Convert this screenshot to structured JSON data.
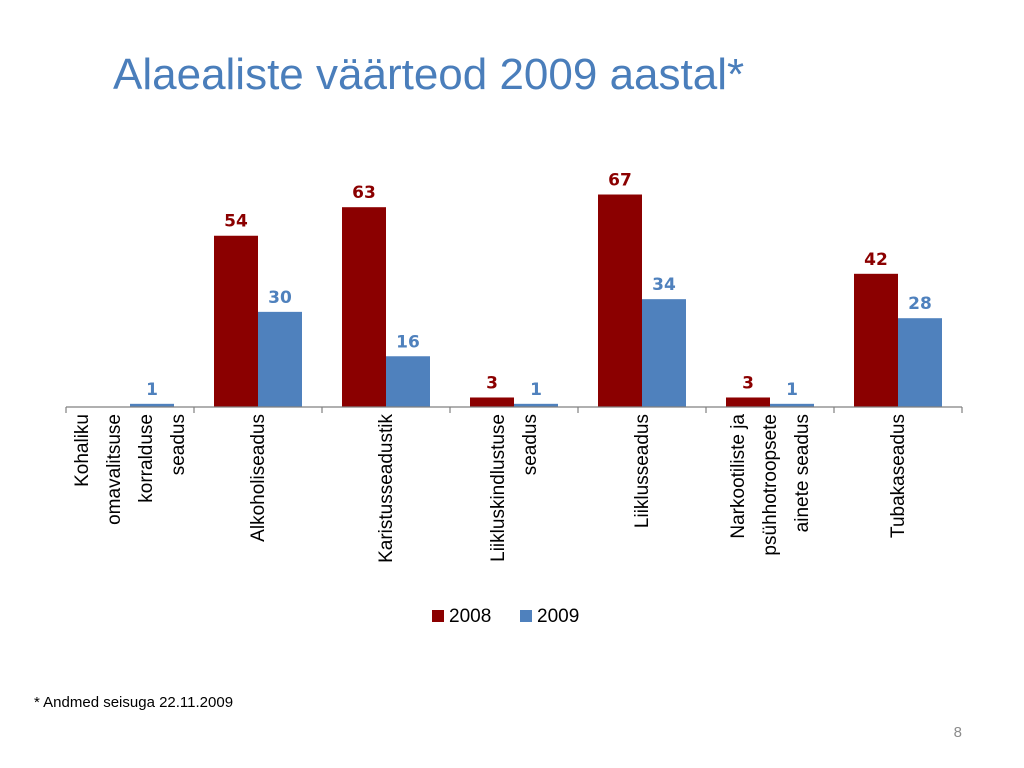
{
  "slide": {
    "title": "Alaealiste väärteod 2009 aastal*",
    "footnote": "* Andmed seisuga 22.11.2009",
    "page_number": "8"
  },
  "chart_data": {
    "type": "bar",
    "categories": [
      [
        "Kohaliku",
        "omavalitsuse",
        "korralduse",
        "seadus"
      ],
      [
        "Alkoholiseadus"
      ],
      [
        "Karistusseadustik"
      ],
      [
        "Liikluskindlustuse",
        "seadus"
      ],
      [
        "Liiklusseadus"
      ],
      [
        "Narkootiliste ja",
        "psühhotroopsete",
        "ainete seadus"
      ],
      [
        "Tubakaseadus"
      ]
    ],
    "series": [
      {
        "name": "2008",
        "color": "#8b0000",
        "values": [
          null,
          54,
          63,
          3,
          67,
          3,
          42
        ]
      },
      {
        "name": "2009",
        "color": "#4f81bd",
        "values": [
          1,
          30,
          16,
          1,
          34,
          1,
          28
        ]
      }
    ],
    "ylim": [
      0,
      70
    ],
    "grid": false,
    "legend_position": "bottom",
    "xlabel": "",
    "ylabel": ""
  }
}
